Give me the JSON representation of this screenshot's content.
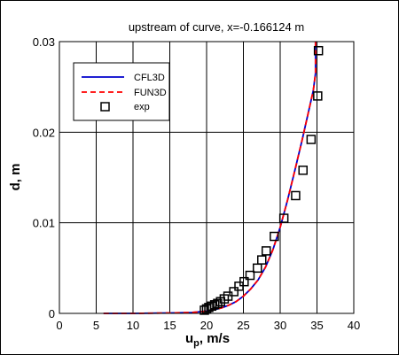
{
  "chart_data": {
    "type": "line",
    "title": "upstream of curve, x=-0.166124 m",
    "xlabel": {
      "main": "u",
      "sub": "p",
      "rest": ", m/s"
    },
    "ylabel": "d, m",
    "xlim": [
      0,
      40
    ],
    "ylim": [
      0,
      0.03
    ],
    "xticks": [
      "0",
      "5",
      "10",
      "15",
      "20",
      "25",
      "30",
      "35",
      "40"
    ],
    "yticks": [
      "0",
      "0.01",
      "0.02",
      "0.03"
    ],
    "grid": true,
    "legend_position": "top-left",
    "series": [
      {
        "name": "CFL3D",
        "color": "#0000cc",
        "style": "solid",
        "x": [
          6,
          10,
          15,
          18,
          20,
          21,
          22,
          23,
          24,
          25,
          26,
          27,
          28,
          29,
          30,
          31,
          32,
          33,
          34,
          34.5,
          34.8,
          34.8
        ],
        "y": [
          0,
          0,
          5e-05,
          0.0001,
          0.00025,
          0.0004,
          0.0006,
          0.0009,
          0.0013,
          0.0019,
          0.0027,
          0.0037,
          0.0051,
          0.007,
          0.0095,
          0.0125,
          0.0158,
          0.0192,
          0.0228,
          0.0246,
          0.0265,
          0.03
        ]
      },
      {
        "name": "FUN3D",
        "color": "#ff0000",
        "style": "dashed",
        "x": [
          6,
          10,
          15,
          18,
          20,
          21,
          22,
          23,
          24,
          25,
          26,
          27,
          28,
          29,
          30,
          31,
          32,
          33,
          34,
          34.5,
          34.8,
          34.8
        ],
        "y": [
          0,
          0,
          5e-05,
          0.0001,
          0.00025,
          0.0004,
          0.0006,
          0.0009,
          0.0013,
          0.0019,
          0.0027,
          0.0037,
          0.0051,
          0.007,
          0.0095,
          0.0125,
          0.0158,
          0.0192,
          0.0228,
          0.0246,
          0.0265,
          0.03
        ]
      },
      {
        "name": "exp",
        "color": "#000000",
        "style": "markers",
        "marker": "square",
        "x": [
          19.7,
          20.0,
          20.3,
          20.7,
          21.1,
          21.5,
          21.9,
          22.4,
          22.9,
          23.7,
          24.4,
          25.1,
          25.9,
          26.9,
          27.5,
          28.1,
          29.2,
          30.5,
          32.1,
          33.1,
          34.2,
          35.1,
          35.2
        ],
        "y": [
          0.00035,
          0.0005,
          0.00065,
          0.0008,
          0.00095,
          0.0011,
          0.0013,
          0.0016,
          0.0019,
          0.0024,
          0.003,
          0.0035,
          0.0042,
          0.005,
          0.0059,
          0.0069,
          0.0085,
          0.0105,
          0.013,
          0.0158,
          0.0192,
          0.024,
          0.029
        ]
      }
    ]
  }
}
